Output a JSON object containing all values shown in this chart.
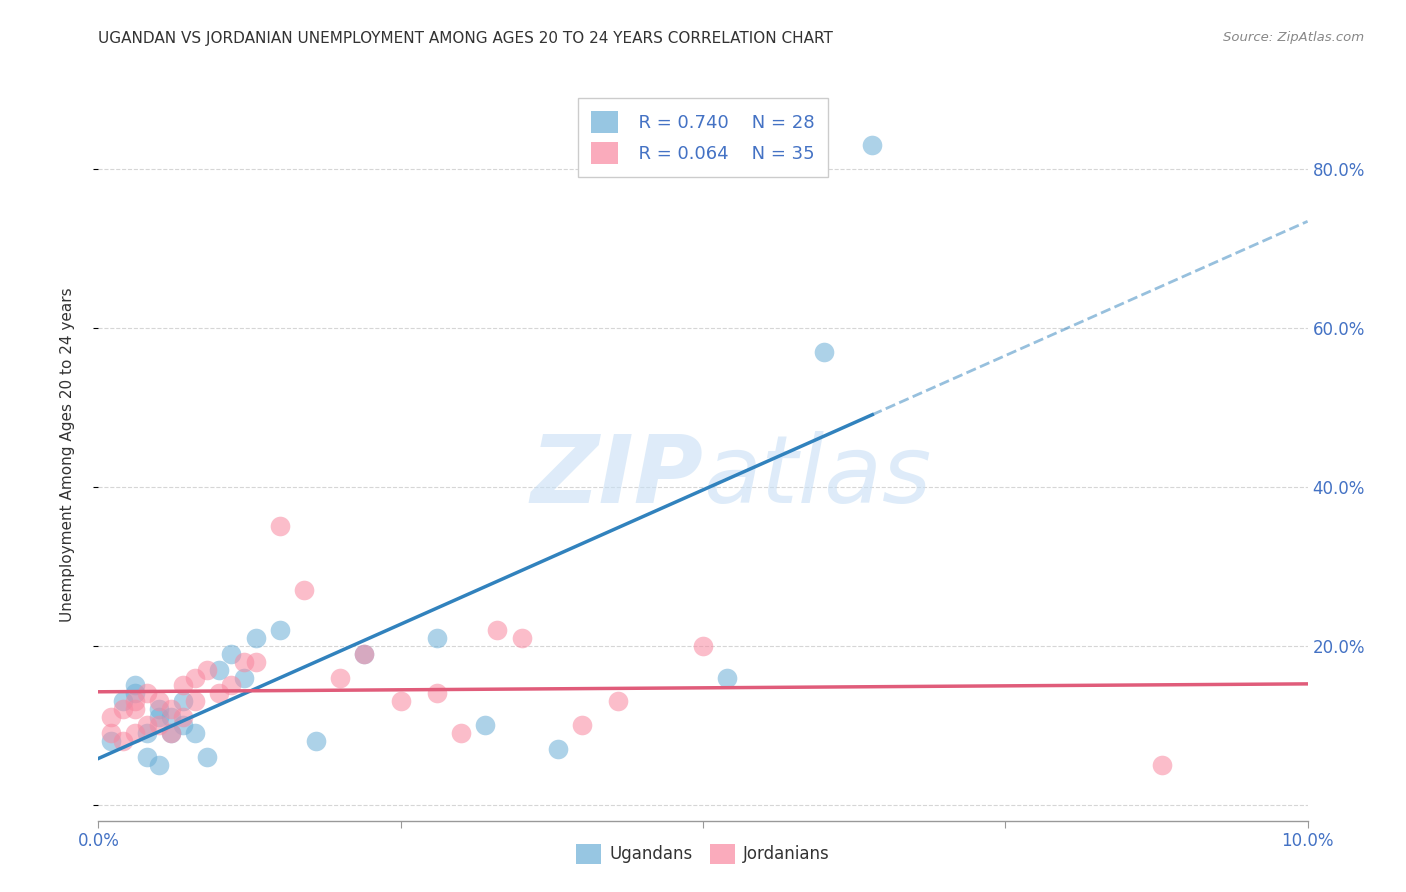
{
  "title": "UGANDAN VS JORDANIAN UNEMPLOYMENT AMONG AGES 20 TO 24 YEARS CORRELATION CHART",
  "source": "Source: ZipAtlas.com",
  "ylabel": "Unemployment Among Ages 20 to 24 years",
  "xlim": [
    0.0,
    0.1
  ],
  "ylim": [
    -0.02,
    0.9
  ],
  "yticks": [
    0.0,
    0.2,
    0.4,
    0.6,
    0.8
  ],
  "xticks": [
    0.0,
    0.025,
    0.05,
    0.075,
    0.1
  ],
  "xtick_labels": [
    "0.0%",
    "",
    "",
    "",
    "10.0%"
  ],
  "ytick_labels_right": [
    "",
    "20.0%",
    "40.0%",
    "60.0%",
    "80.0%"
  ],
  "legend_r_uganda": "R = 0.740",
  "legend_n_uganda": "N = 28",
  "legend_r_jordan": "R = 0.064",
  "legend_n_jordan": "N = 35",
  "uganda_color": "#6baed6",
  "jordan_color": "#f888a0",
  "uganda_line_color": "#3182bd",
  "jordan_line_color": "#e05c7a",
  "uganda_x": [
    0.001,
    0.002,
    0.003,
    0.003,
    0.004,
    0.004,
    0.005,
    0.005,
    0.005,
    0.006,
    0.006,
    0.007,
    0.007,
    0.008,
    0.009,
    0.01,
    0.011,
    0.012,
    0.013,
    0.015,
    0.018,
    0.022,
    0.028,
    0.032,
    0.038,
    0.052,
    0.06,
    0.064
  ],
  "uganda_y": [
    0.08,
    0.13,
    0.14,
    0.15,
    0.06,
    0.09,
    0.11,
    0.12,
    0.05,
    0.11,
    0.09,
    0.1,
    0.13,
    0.09,
    0.06,
    0.17,
    0.19,
    0.16,
    0.21,
    0.22,
    0.08,
    0.19,
    0.21,
    0.1,
    0.07,
    0.16,
    0.57,
    0.83
  ],
  "jordan_x": [
    0.001,
    0.001,
    0.002,
    0.002,
    0.003,
    0.003,
    0.003,
    0.004,
    0.004,
    0.005,
    0.005,
    0.006,
    0.006,
    0.007,
    0.007,
    0.008,
    0.008,
    0.009,
    0.01,
    0.011,
    0.012,
    0.013,
    0.015,
    0.017,
    0.02,
    0.022,
    0.025,
    0.028,
    0.03,
    0.033,
    0.035,
    0.04,
    0.043,
    0.05,
    0.088
  ],
  "jordan_y": [
    0.09,
    0.11,
    0.08,
    0.12,
    0.09,
    0.12,
    0.13,
    0.1,
    0.14,
    0.1,
    0.13,
    0.09,
    0.12,
    0.11,
    0.15,
    0.16,
    0.13,
    0.17,
    0.14,
    0.15,
    0.18,
    0.18,
    0.35,
    0.27,
    0.16,
    0.19,
    0.13,
    0.14,
    0.09,
    0.22,
    0.21,
    0.1,
    0.13,
    0.2,
    0.05
  ],
  "background_color": "#ffffff",
  "title_fontsize": 11,
  "axis_label_fontsize": 11,
  "tick_fontsize": 12,
  "legend_fontsize": 13
}
